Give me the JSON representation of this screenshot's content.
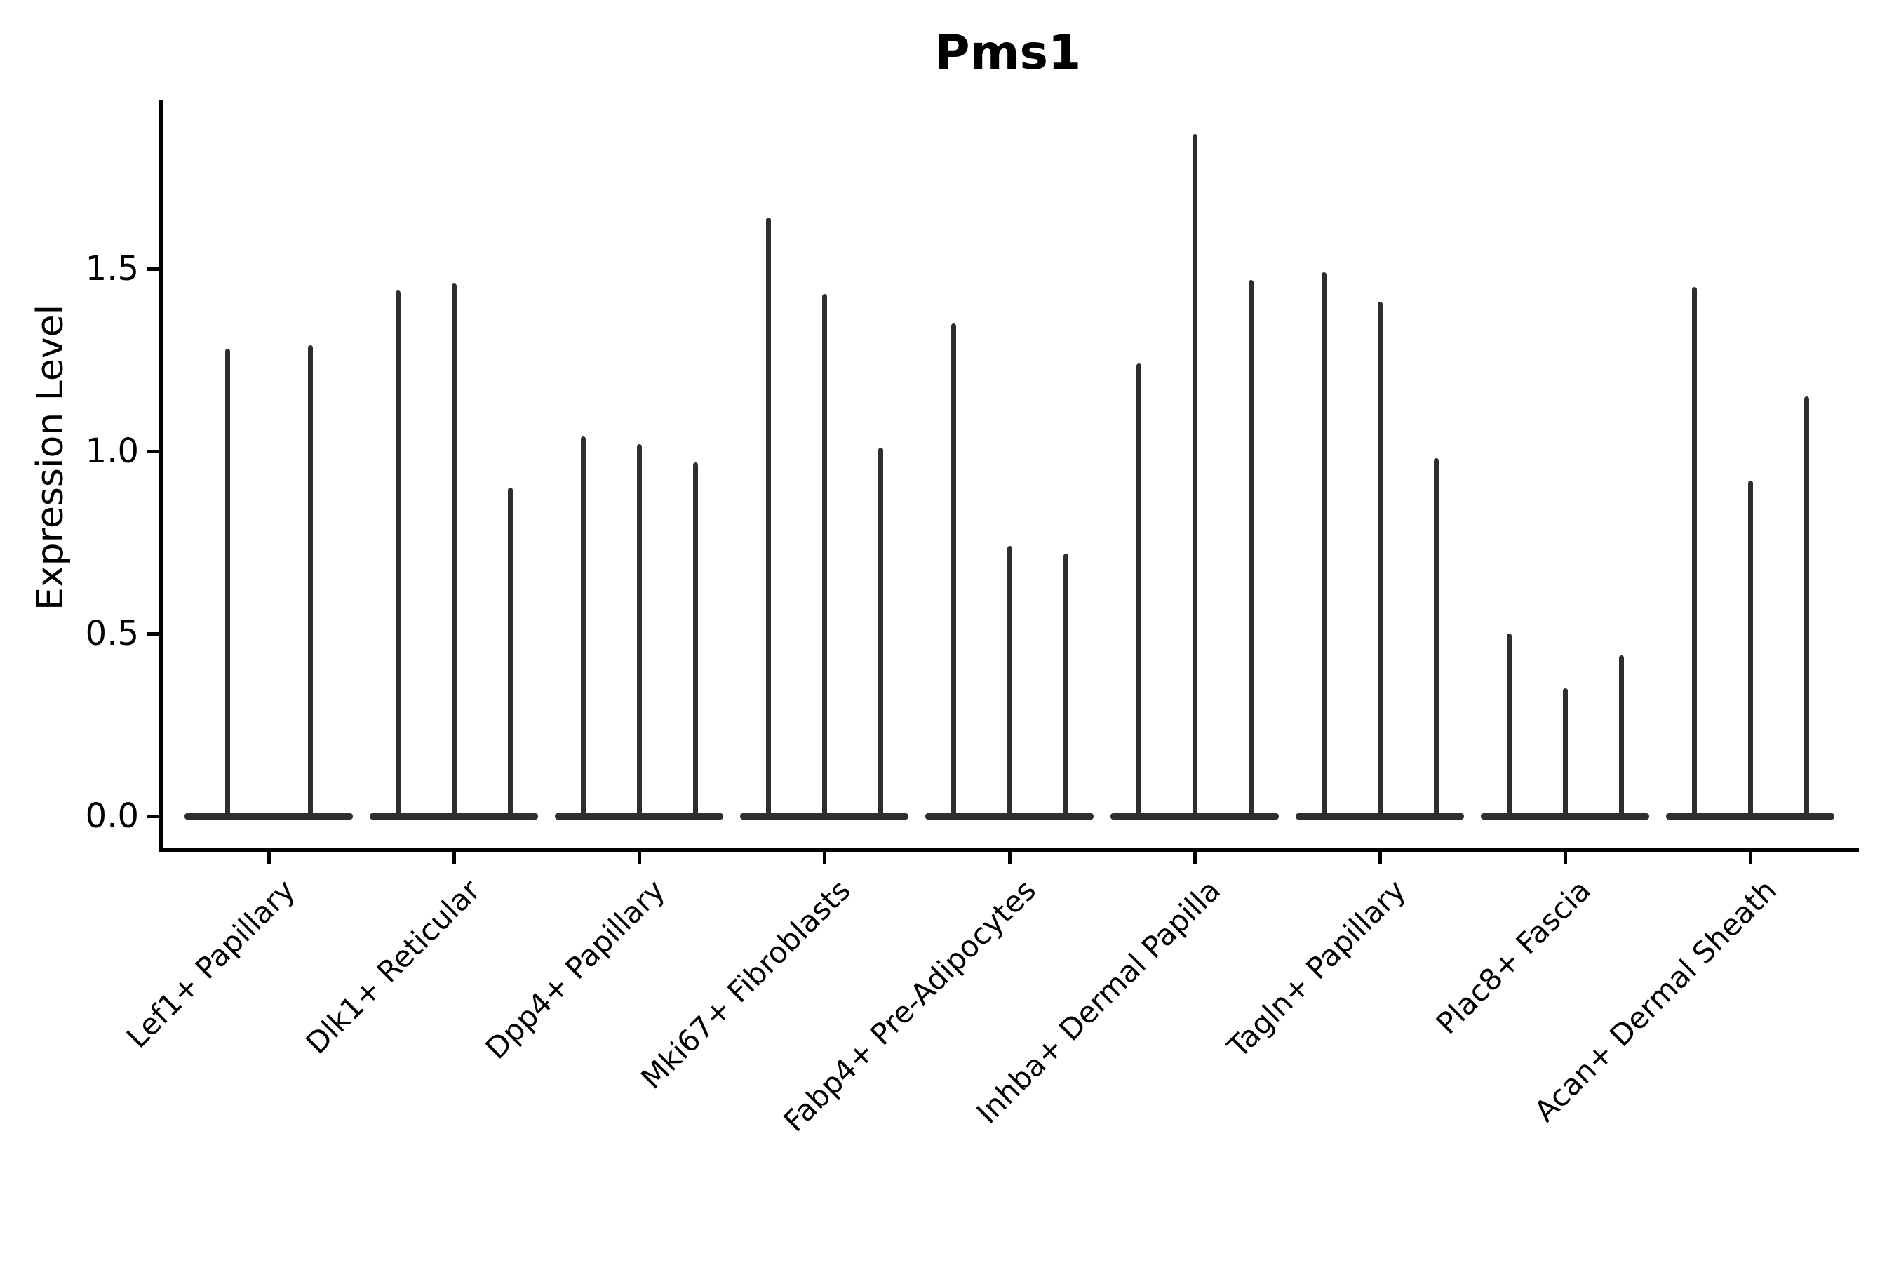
{
  "title": "Pms1",
  "ylabel": "Expression Level",
  "colors": {
    "ink": "#000000",
    "violin": "#2e2e2e",
    "background": "#ffffff"
  },
  "chart_data": {
    "type": "violin",
    "title": "Pms1",
    "xlabel": "",
    "ylabel": "Expression Level",
    "ylim": [
      0.0,
      1.96
    ],
    "yticks": [
      0.0,
      0.5,
      1.0,
      1.5
    ],
    "grid": false,
    "legend": "none",
    "description": "Narrow spike-shaped violins of gene expression per cell-type group; each group shows 2-3 violins rising from a flat base at 0",
    "categories": [
      "Lef1+ Papillary",
      "Dlk1+ Reticular",
      "Dpp4+ Papillary",
      "Mki67+ Fibroblasts",
      "Fabp4+ Pre-Adipocytes",
      "Inhba+ Dermal Papilla",
      "Tagln+ Papillary",
      "Plac8+ Fascia",
      "Acan+ Dermal Sheath"
    ],
    "series": [
      {
        "category": "Lef1+ Papillary",
        "violin_max_values": [
          1.28,
          1.29
        ]
      },
      {
        "category": "Dlk1+ Reticular",
        "violin_max_values": [
          1.44,
          1.46,
          0.9
        ]
      },
      {
        "category": "Dpp4+ Papillary",
        "violin_max_values": [
          1.04,
          1.02,
          0.97
        ]
      },
      {
        "category": "Mki67+ Fibroblasts",
        "violin_max_values": [
          1.64,
          1.43,
          1.01
        ]
      },
      {
        "category": "Fabp4+ Pre-Adipocytes",
        "violin_max_values": [
          1.35,
          0.74,
          0.72
        ]
      },
      {
        "category": "Inhba+ Dermal Papilla",
        "violin_max_values": [
          1.24,
          1.87,
          1.47
        ]
      },
      {
        "category": "Tagln+ Papillary",
        "violin_max_values": [
          1.49,
          1.41,
          0.98
        ]
      },
      {
        "category": "Plac8+ Fascia",
        "violin_max_values": [
          0.5,
          0.35,
          0.44
        ]
      },
      {
        "category": "Acan+ Dermal Sheath",
        "violin_max_values": [
          1.45,
          0.92,
          1.15
        ]
      }
    ],
    "violin_min_value": 0.0
  }
}
